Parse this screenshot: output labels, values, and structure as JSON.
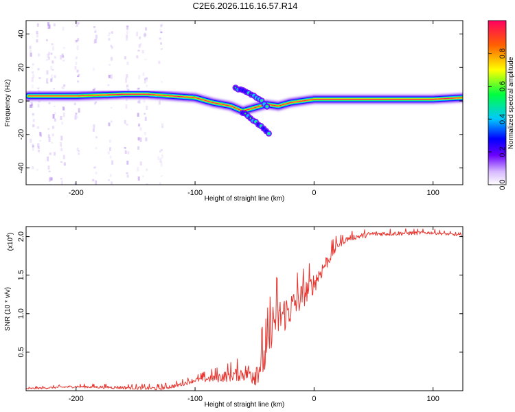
{
  "title": "C2E6.2026.116.16.57.R14",
  "chart_data": [
    {
      "type": "heatmap",
      "name": "spectrogram",
      "xlabel": "Height of straight line (km)",
      "ylabel": "Frequency (Hz)",
      "xlim": [
        -242,
        125
      ],
      "ylim": [
        -50,
        48
      ],
      "xticks": [
        -200,
        -100,
        0,
        100
      ],
      "yticks": [
        -40,
        -20,
        0,
        20,
        40
      ],
      "colorbar": {
        "label": "Normalized spectral amplitude",
        "range": [
          0,
          1
        ],
        "ticks": [
          "0.0",
          "0.2",
          "0.4",
          "0.6",
          "0.8"
        ]
      },
      "ridge": [
        {
          "x": -240,
          "f": 3
        },
        {
          "x": -200,
          "f": 3
        },
        {
          "x": -160,
          "f": 4
        },
        {
          "x": -140,
          "f": 4
        },
        {
          "x": -120,
          "f": 3
        },
        {
          "x": -100,
          "f": 2
        },
        {
          "x": -85,
          "f": -1
        },
        {
          "x": -70,
          "f": -3
        },
        {
          "x": -60,
          "f": -6
        },
        {
          "x": -50,
          "f": -4
        },
        {
          "x": -40,
          "f": -2
        },
        {
          "x": -30,
          "f": -3
        },
        {
          "x": -20,
          "f": -1
        },
        {
          "x": -10,
          "f": 0
        },
        {
          "x": 0,
          "f": 1
        },
        {
          "x": 20,
          "f": 1
        },
        {
          "x": 60,
          "f": 1
        },
        {
          "x": 100,
          "f": 1
        },
        {
          "x": 125,
          "f": 2
        }
      ],
      "branches": [
        {
          "name": "upper-branch",
          "points": [
            {
              "x": -66,
              "f": 8
            },
            {
              "x": -55,
              "f": 5
            },
            {
              "x": -45,
              "f": 1
            },
            {
              "x": -38,
              "f": -4
            }
          ]
        },
        {
          "name": "lower-branch",
          "points": [
            {
              "x": -60,
              "f": -7
            },
            {
              "x": -50,
              "f": -12
            },
            {
              "x": -42,
              "f": -17
            },
            {
              "x": -36,
              "f": -21
            }
          ]
        }
      ],
      "noise_columns_km": [
        -238,
        -232,
        -224,
        -220,
        -212,
        -200,
        -185,
        -172,
        -158,
        -148,
        -143,
        -130
      ]
    },
    {
      "type": "line",
      "name": "snr",
      "xlabel": "Height of straight line (km)",
      "ylabel": "SNR (10 * v/v)",
      "multiplier": "(x10",
      "multiplier_exp": "4",
      "multiplier_close": ")",
      "xlim": [
        -242,
        125
      ],
      "ylim": [
        0,
        2.13
      ],
      "xticks": [
        -200,
        -100,
        0,
        100
      ],
      "yticks": [
        0.5,
        1.0,
        1.5,
        2.0
      ],
      "ytick_labels": [
        "0.5",
        "1.0",
        "1.5",
        "2.0"
      ],
      "color": "#e8332d",
      "envelope": [
        {
          "x": -242,
          "y": 0.03
        },
        {
          "x": -200,
          "y": 0.06
        },
        {
          "x": -160,
          "y": 0.05
        },
        {
          "x": -130,
          "y": 0.04
        },
        {
          "x": -115,
          "y": 0.08
        },
        {
          "x": -100,
          "y": 0.15
        },
        {
          "x": -80,
          "y": 0.2
        },
        {
          "x": -65,
          "y": 0.25
        },
        {
          "x": -50,
          "y": 0.3
        },
        {
          "x": -40,
          "y": 0.55
        },
        {
          "x": -35,
          "y": 1.0
        },
        {
          "x": -30,
          "y": 1.05
        },
        {
          "x": -20,
          "y": 1.15
        },
        {
          "x": -10,
          "y": 1.3
        },
        {
          "x": 0,
          "y": 1.45
        },
        {
          "x": 10,
          "y": 1.7
        },
        {
          "x": 20,
          "y": 1.92
        },
        {
          "x": 30,
          "y": 2.0
        },
        {
          "x": 50,
          "y": 2.05
        },
        {
          "x": 100,
          "y": 2.06
        },
        {
          "x": 125,
          "y": 2.02
        }
      ],
      "noise_amplitude": [
        {
          "x": -242,
          "a": 0.02
        },
        {
          "x": -100,
          "a": 0.06
        },
        {
          "x": -60,
          "a": 0.2
        },
        {
          "x": -40,
          "a": 0.5
        },
        {
          "x": -30,
          "a": 0.55
        },
        {
          "x": -10,
          "a": 0.35
        },
        {
          "x": 10,
          "a": 0.2
        },
        {
          "x": 25,
          "a": 0.08
        },
        {
          "x": 125,
          "a": 0.03
        }
      ]
    }
  ]
}
